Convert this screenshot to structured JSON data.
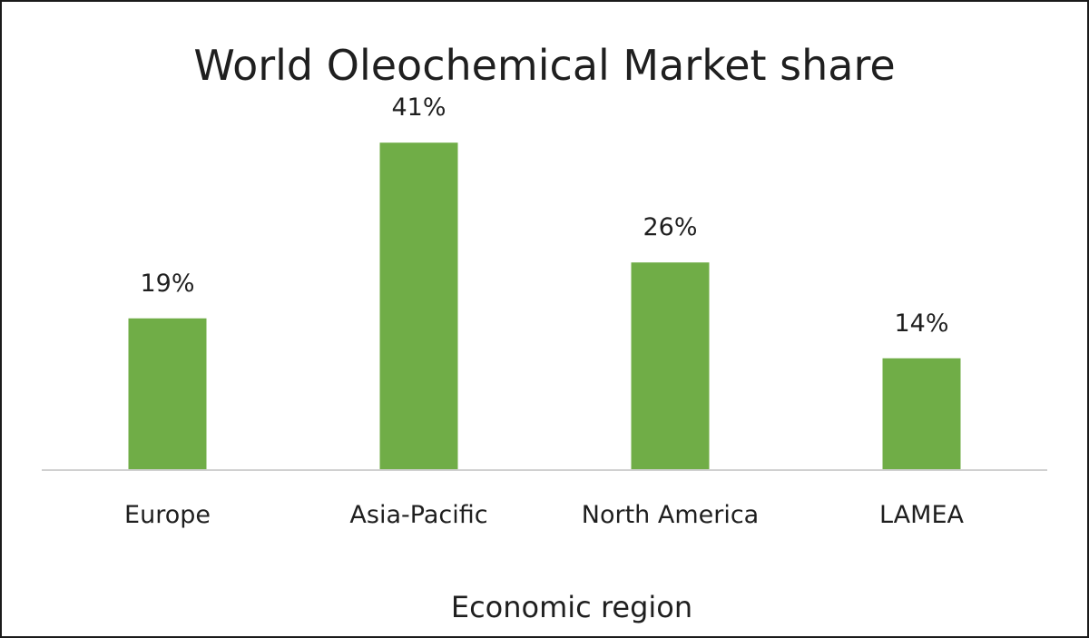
{
  "chart_data": {
    "type": "bar",
    "title": "World Oleochemical Market share",
    "xlabel": "Economic region",
    "ylabel": "",
    "categories": [
      "Europe",
      "Asia-Pacific",
      "North America",
      "LAMEA"
    ],
    "values": [
      19,
      41,
      26,
      14
    ],
    "value_labels": [
      "19%",
      "41%",
      "26%",
      "14%"
    ],
    "unit": "%",
    "ylim": [
      0,
      50
    ],
    "grid": false,
    "legend": "none",
    "colors": {
      "bar": "#70ad47",
      "axis": "#d0d0d0",
      "text": "#1f1f1f",
      "border": "#1a1a1a"
    }
  }
}
